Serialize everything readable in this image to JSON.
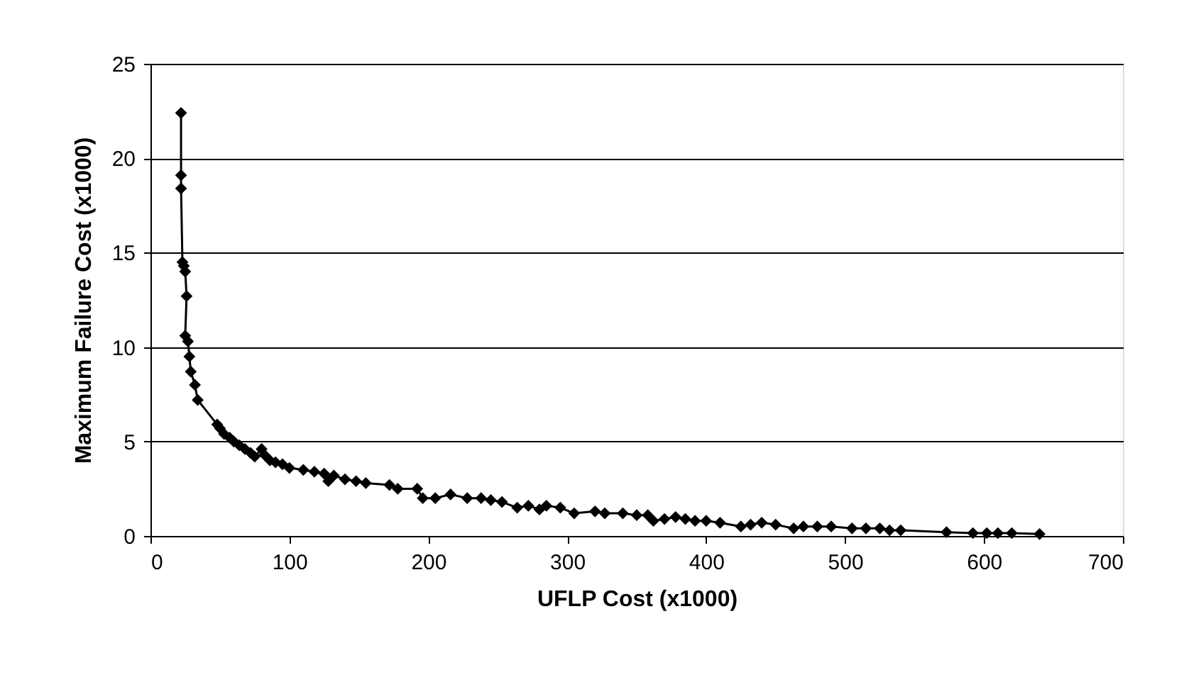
{
  "chart_data": {
    "type": "line",
    "xlabel": "UFLP Cost (x1000)",
    "ylabel": "Maximum Failure Cost  (x1000)",
    "x": [
      22,
      22,
      22,
      23,
      24,
      25,
      26,
      25,
      27,
      28,
      29,
      32,
      34,
      48,
      50,
      53,
      57,
      60,
      64,
      68,
      72,
      75,
      80,
      82,
      86,
      90,
      95,
      100,
      110,
      118,
      125,
      128,
      132,
      140,
      148,
      155,
      172,
      178,
      192,
      196,
      205,
      216,
      228,
      238,
      245,
      253,
      264,
      272,
      280,
      285,
      295,
      305,
      320,
      327,
      340,
      350,
      358,
      362,
      370,
      378,
      385,
      392,
      400,
      410,
      425,
      432,
      440,
      450,
      463,
      470,
      480,
      490,
      505,
      515,
      525,
      532,
      540,
      573,
      592,
      602,
      610,
      620,
      640
    ],
    "series": [
      {
        "color": "#000000",
        "values": [
          22.4,
          19.1,
          18.4,
          14.5,
          14.3,
          14.0,
          12.7,
          10.6,
          10.3,
          9.5,
          8.7,
          8.0,
          7.2,
          5.9,
          5.7,
          5.4,
          5.2,
          5.0,
          4.8,
          4.6,
          4.4,
          4.2,
          4.6,
          4.3,
          4.0,
          3.9,
          3.8,
          3.6,
          3.5,
          3.4,
          3.3,
          2.9,
          3.2,
          3.0,
          2.9,
          2.8,
          2.7,
          2.5,
          2.5,
          2.0,
          2.0,
          2.2,
          2.0,
          2.0,
          1.9,
          1.8,
          1.5,
          1.6,
          1.4,
          1.6,
          1.5,
          1.2,
          1.3,
          1.2,
          1.2,
          1.1,
          1.1,
          0.8,
          0.9,
          1.0,
          0.9,
          0.8,
          0.8,
          0.7,
          0.5,
          0.6,
          0.7,
          0.6,
          0.4,
          0.5,
          0.5,
          0.5,
          0.4,
          0.4,
          0.4,
          0.3,
          0.3,
          0.2,
          0.15,
          0.15,
          0.15,
          0.15,
          0.1
        ]
      }
    ],
    "xlim": [
      0,
      700
    ],
    "xticks": [
      0,
      100,
      200,
      300,
      400,
      500,
      600,
      700
    ],
    "ylim": [
      0,
      25
    ],
    "yticks": [
      0,
      5,
      10,
      15,
      20,
      25
    ],
    "grid": "y",
    "marker": "diamond",
    "line_style": "solid"
  }
}
